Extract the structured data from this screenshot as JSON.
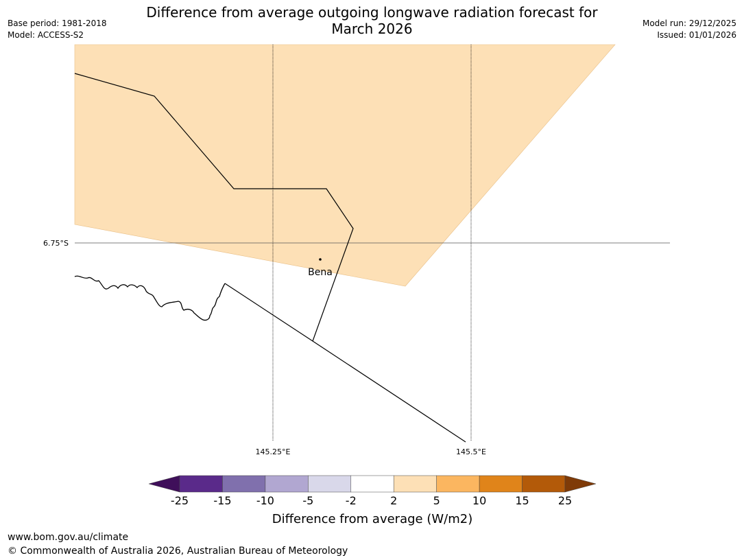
{
  "title_line1": "Difference from average outgoing longwave radiation forecast for",
  "title_line2": "March 2026",
  "meta_left": {
    "base_period": "Base period: 1981-2018",
    "model": "Model: ACCESS-S2"
  },
  "meta_right": {
    "model_run": "Model run: 29/12/2025",
    "issued": "Issued: 01/01/2026"
  },
  "map": {
    "lat_label": "6.75°S",
    "lon_labels": [
      "145.25°E",
      "145.5°E"
    ],
    "place": "Bena",
    "anomaly_band": "2 to 5",
    "anomaly_color": "#fde0b6"
  },
  "colorbar": {
    "title": "Difference from average (W/m2)",
    "ticks": [
      "-25",
      "-15",
      "-10",
      "-5",
      "-2",
      "2",
      "5",
      "10",
      "15",
      "25"
    ],
    "colors": [
      "#3f0f5a",
      "#5a2a8a",
      "#8070ad",
      "#b1a7d1",
      "#d9d8ea",
      "#ffffff",
      "#fde0b6",
      "#fbb660",
      "#e0841a",
      "#b35a09",
      "#7f3b08"
    ]
  },
  "footer": {
    "url": "www.bom.gov.au/climate",
    "copyright": "© Commonwealth of Australia 2026, Australian Bureau of Meteorology"
  }
}
